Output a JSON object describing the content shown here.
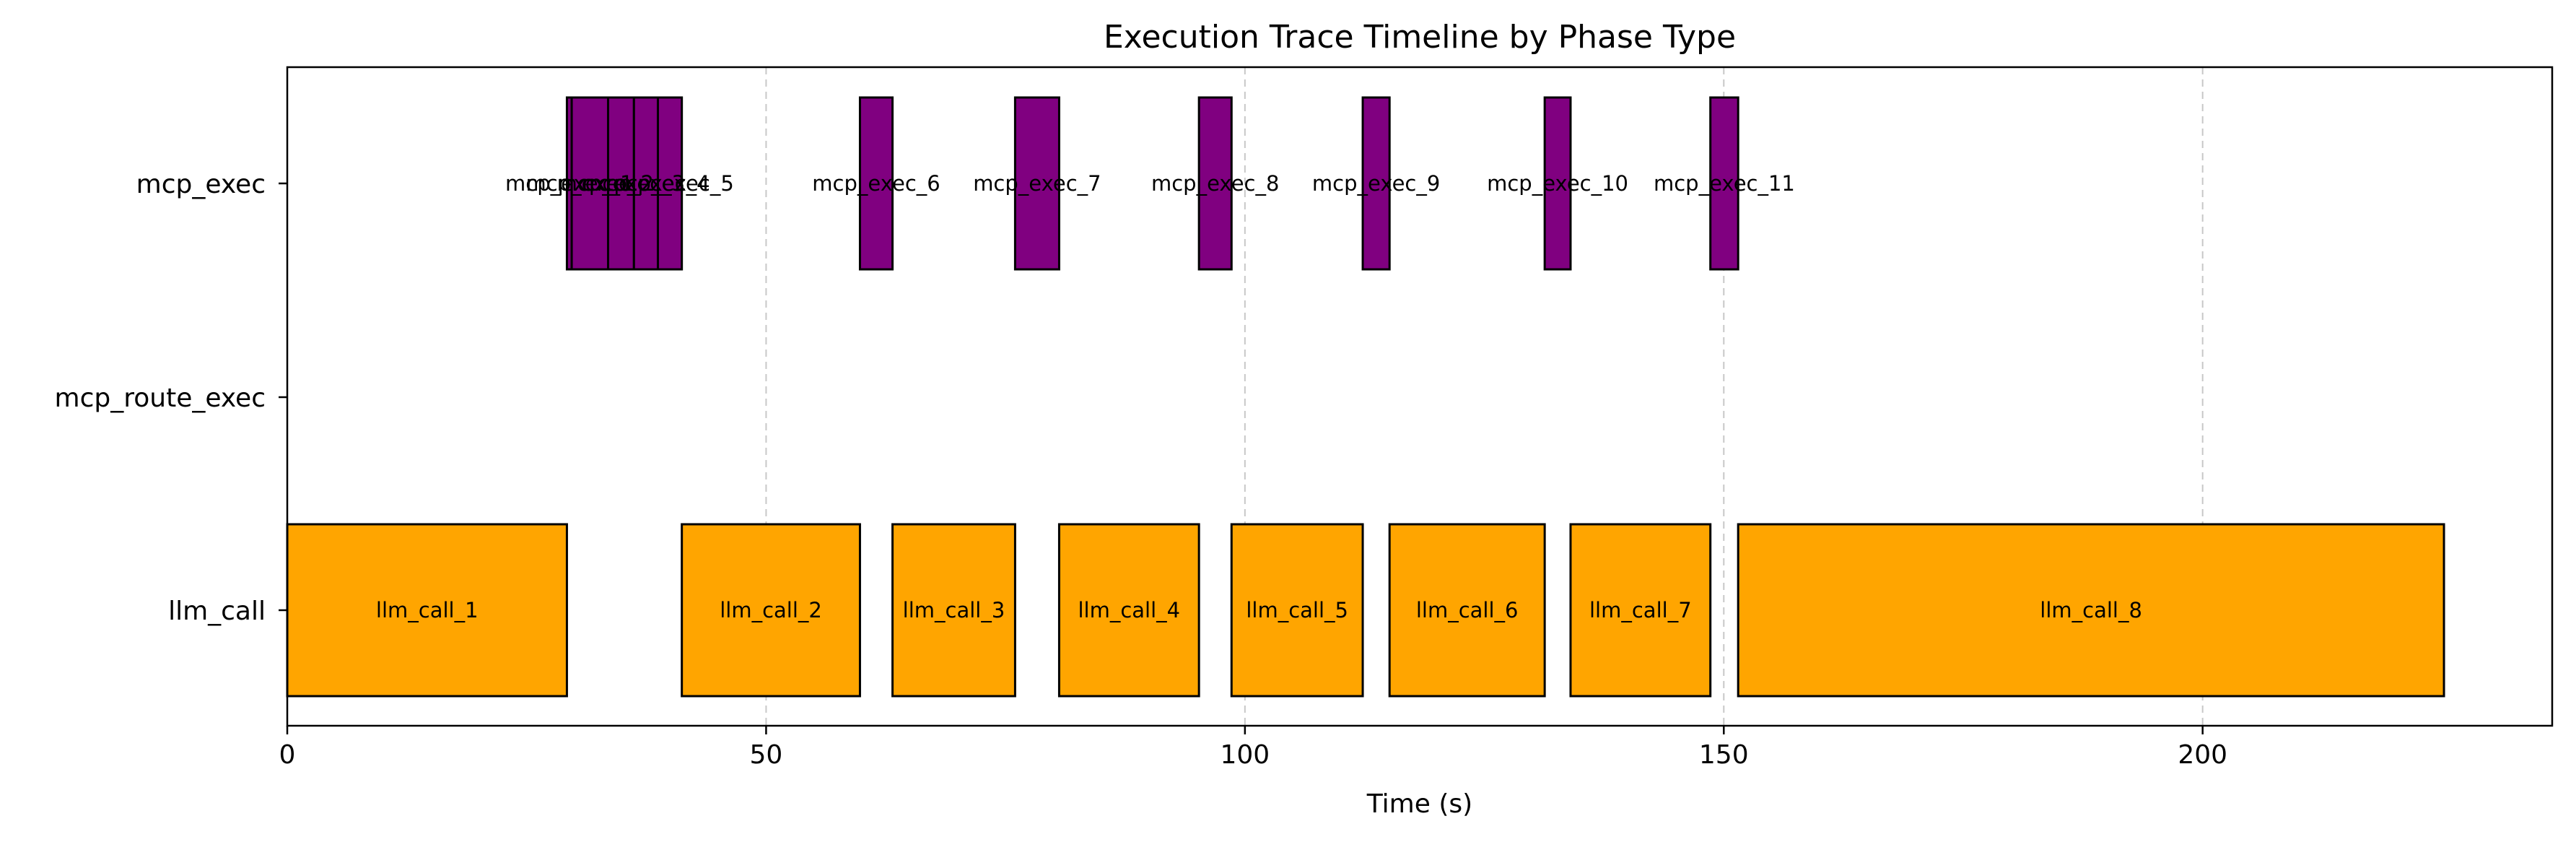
{
  "chart_data": {
    "type": "timeline",
    "title": "Execution Trace Timeline by Phase Type",
    "xlabel": "Time (s)",
    "ylabel": "",
    "xlim": [
      0,
      236.5
    ],
    "x_ticks": [
      0,
      50,
      100,
      150,
      200
    ],
    "grid": "vertical-dashed",
    "lanes": [
      "llm_call",
      "mcp_route_exec",
      "mcp_exec"
    ],
    "colors": {
      "llm_call": "#ffa500",
      "mcp_exec": "#800080",
      "edge": "#000000",
      "grid": "#c8c8c8"
    },
    "segments": [
      {
        "lane": "llm_call",
        "label": "llm_call_1",
        "start": 0,
        "end": 29.2
      },
      {
        "lane": "llm_call",
        "label": "llm_call_2",
        "start": 41.2,
        "end": 59.8
      },
      {
        "lane": "llm_call",
        "label": "llm_call_3",
        "start": 63.2,
        "end": 76.0
      },
      {
        "lane": "llm_call",
        "label": "llm_call_4",
        "start": 80.6,
        "end": 95.2
      },
      {
        "lane": "llm_call",
        "label": "llm_call_5",
        "start": 98.6,
        "end": 112.3
      },
      {
        "lane": "llm_call",
        "label": "llm_call_6",
        "start": 115.1,
        "end": 131.3
      },
      {
        "lane": "llm_call",
        "label": "llm_call_7",
        "start": 134.0,
        "end": 148.6
      },
      {
        "lane": "llm_call",
        "label": "llm_call_8",
        "start": 151.5,
        "end": 225.2
      },
      {
        "lane": "mcp_exec",
        "label": "mcp_exec_1",
        "start": 29.2,
        "end": 29.7
      },
      {
        "lane": "mcp_exec",
        "label": "mcp_exec_2",
        "start": 29.7,
        "end": 33.5
      },
      {
        "lane": "mcp_exec",
        "label": "mcp_exec_3",
        "start": 33.5,
        "end": 36.2
      },
      {
        "lane": "mcp_exec",
        "label": "mcp_exec_4",
        "start": 36.2,
        "end": 38.7
      },
      {
        "lane": "mcp_exec",
        "label": "mcp_exec_5",
        "start": 38.7,
        "end": 41.2
      },
      {
        "lane": "mcp_exec",
        "label": "mcp_exec_6",
        "start": 59.8,
        "end": 63.2
      },
      {
        "lane": "mcp_exec",
        "label": "mcp_exec_7",
        "start": 76.0,
        "end": 80.6
      },
      {
        "lane": "mcp_exec",
        "label": "mcp_exec_8",
        "start": 95.2,
        "end": 98.6
      },
      {
        "lane": "mcp_exec",
        "label": "mcp_exec_9",
        "start": 112.3,
        "end": 115.1
      },
      {
        "lane": "mcp_exec",
        "label": "mcp_exec_10",
        "start": 131.3,
        "end": 134.0
      },
      {
        "lane": "mcp_exec",
        "label": "mcp_exec_11",
        "start": 148.6,
        "end": 151.5
      }
    ]
  }
}
